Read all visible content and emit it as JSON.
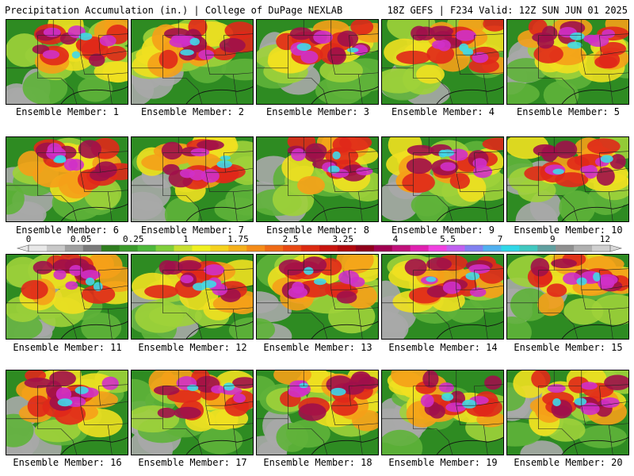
{
  "header": {
    "left": "Precipitation Accumulation (in.) | College of DuPage NEXLAB",
    "right": "18Z GEFS | F234 Valid: 12Z SUN JUN 01 2025"
  },
  "colorbar": {
    "labels": [
      "0",
      "0.05",
      "0.25",
      "1",
      "1.75",
      "2.5",
      "3.25",
      "4",
      "5.5",
      "7",
      "9",
      "12"
    ],
    "colors": [
      "#e8e8e8",
      "#c8c8c8",
      "#a0a0a0",
      "#7a7a7a",
      "#2e7d1f",
      "#3a9a2a",
      "#4cb83a",
      "#7fcf3a",
      "#c8e030",
      "#f0f020",
      "#f5d21e",
      "#f5b01a",
      "#f58c18",
      "#ef6a16",
      "#e84812",
      "#dc2a10",
      "#c8140e",
      "#b0080c",
      "#90001a",
      "#a00050",
      "#c0107a",
      "#e020b0",
      "#f040e0",
      "#c060f0",
      "#8080f0",
      "#50b0f0",
      "#30d8e8",
      "#40c8c0",
      "#60a0a0",
      "#909090",
      "#b0b0b0",
      "#d0d0d0"
    ]
  },
  "panels": [
    {
      "caption": "Ensemble Member: 1"
    },
    {
      "caption": "Ensemble Member: 2"
    },
    {
      "caption": "Ensemble Member: 3"
    },
    {
      "caption": "Ensemble Member: 4"
    },
    {
      "caption": "Ensemble Member: 5"
    },
    {
      "caption": "Ensemble Member: 6"
    },
    {
      "caption": "Ensemble Member: 7"
    },
    {
      "caption": "Ensemble Member: 8"
    },
    {
      "caption": "Ensemble Member: 9"
    },
    {
      "caption": "Ensemble Member: 10"
    },
    {
      "caption": "Ensemble Member: 11"
    },
    {
      "caption": "Ensemble Member: 12"
    },
    {
      "caption": "Ensemble Member: 13"
    },
    {
      "caption": "Ensemble Member: 14"
    },
    {
      "caption": "Ensemble Member: 15"
    },
    {
      "caption": "Ensemble Member: 16"
    },
    {
      "caption": "Ensemble Member: 17"
    },
    {
      "caption": "Ensemble Member: 18"
    },
    {
      "caption": "Ensemble Member: 19"
    },
    {
      "caption": "Ensemble Member: 20"
    }
  ]
}
